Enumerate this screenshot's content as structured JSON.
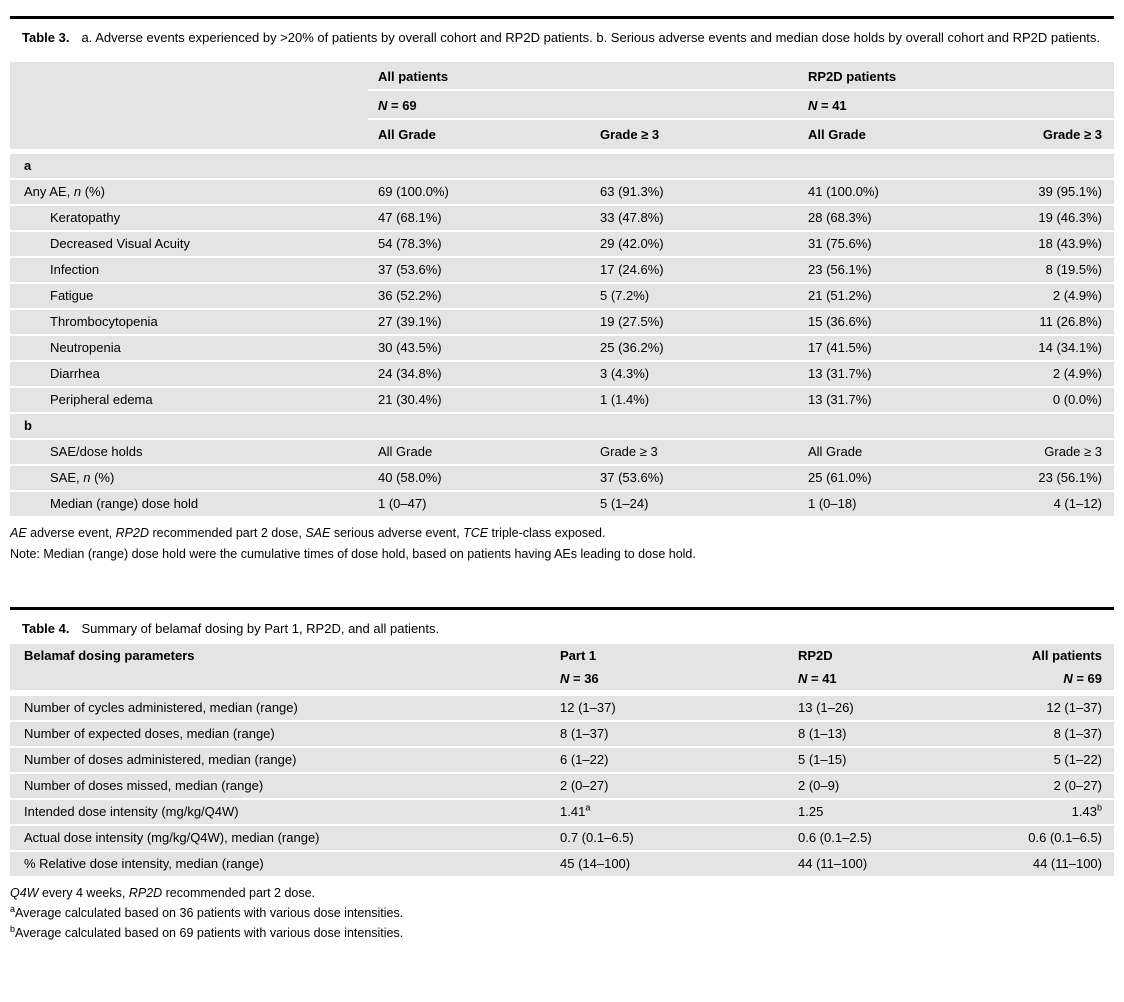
{
  "colors": {
    "row_bg": "#e4e4e4",
    "rule": "#000000",
    "text": "#000000",
    "page_bg": "#ffffff"
  },
  "t3": {
    "caption_label": "Table 3.",
    "caption_body": "a. Adverse events experienced by >20% of patients by overall cohort and RP2D patients. b. Serious adverse events and median dose holds by overall cohort and RP2D patients.",
    "group_titles": [
      "All patients",
      "RP2D patients"
    ],
    "n_row": [
      [
        {
          "t": "N",
          "s": "i"
        },
        {
          "t": " = 69"
        }
      ],
      [
        {
          "t": "N",
          "s": "i"
        },
        {
          "t": " = 41"
        }
      ]
    ],
    "grade_row": [
      "All Grade",
      "Grade ≥ 3",
      "All Grade",
      "Grade ≥ 3"
    ],
    "rows": [
      {
        "label": [
          {
            "t": "a"
          }
        ],
        "section": true,
        "cells": null
      },
      {
        "label": [
          {
            "t": "Any AE, "
          },
          {
            "t": "n",
            "s": "i"
          },
          {
            "t": " (%)"
          }
        ],
        "cells": [
          "69 (100.0%)",
          "63 (91.3%)",
          "41 (100.0%)",
          "39 (95.1%)"
        ]
      },
      {
        "label": [
          {
            "t": "Keratopathy"
          }
        ],
        "cells": [
          "47 (68.1%)",
          "33 (47.8%)",
          "28 (68.3%)",
          "19 (46.3%)"
        ]
      },
      {
        "label": [
          {
            "t": "Decreased Visual Acuity"
          }
        ],
        "cells": [
          "54 (78.3%)",
          "29 (42.0%)",
          "31 (75.6%)",
          "18 (43.9%)"
        ]
      },
      {
        "label": [
          {
            "t": "Infection"
          }
        ],
        "cells": [
          "37 (53.6%)",
          "17 (24.6%)",
          "23 (56.1%)",
          "8 (19.5%)"
        ]
      },
      {
        "label": [
          {
            "t": "Fatigue"
          }
        ],
        "cells": [
          "36 (52.2%)",
          "5 (7.2%)",
          "21 (51.2%)",
          "2 (4.9%)"
        ]
      },
      {
        "label": [
          {
            "t": "Thrombocytopenia"
          }
        ],
        "cells": [
          "27 (39.1%)",
          "19 (27.5%)",
          "15 (36.6%)",
          "11 (26.8%)"
        ]
      },
      {
        "label": [
          {
            "t": "Neutropenia"
          }
        ],
        "cells": [
          "30 (43.5%)",
          "25 (36.2%)",
          "17 (41.5%)",
          "14 (34.1%)"
        ]
      },
      {
        "label": [
          {
            "t": "Diarrhea"
          }
        ],
        "cells": [
          "24 (34.8%)",
          "3 (4.3%)",
          "13 (31.7%)",
          "2 (4.9%)"
        ]
      },
      {
        "label": [
          {
            "t": "Peripheral edema"
          }
        ],
        "cells": [
          "21 (30.4%)",
          "1 (1.4%)",
          "13 (31.7%)",
          "0 (0.0%)"
        ]
      },
      {
        "label": [
          {
            "t": "b"
          }
        ],
        "section": true,
        "cells": null
      },
      {
        "label": [
          {
            "t": "SAE/dose holds"
          }
        ],
        "cells": [
          "All Grade",
          "Grade ≥ 3",
          "All Grade",
          "Grade ≥ 3"
        ]
      },
      {
        "label": [
          {
            "t": "SAE, "
          },
          {
            "t": "n",
            "s": "i"
          },
          {
            "t": " (%)"
          }
        ],
        "cells": [
          "40 (58.0%)",
          "37 (53.6%)",
          "25 (61.0%)",
          "23 (56.1%)"
        ]
      },
      {
        "label": [
          {
            "t": "Median (range) dose hold"
          }
        ],
        "cells": [
          "1 (0–47)",
          "5 (1–24)",
          "1 (0–18)",
          "4 (1–12)"
        ]
      }
    ],
    "footnotes": [
      [
        {
          "t": "AE",
          "s": "i"
        },
        {
          "t": " adverse event, "
        },
        {
          "t": "RP2D",
          "s": "i"
        },
        {
          "t": " recommended part 2 dose, "
        },
        {
          "t": "SAE",
          "s": "i"
        },
        {
          "t": " serious adverse event, "
        },
        {
          "t": "TCE",
          "s": "i"
        },
        {
          "t": " triple-class exposed."
        }
      ],
      [
        {
          "t": "Note: Median (range) dose hold were the cumulative times of dose hold, based on patients having AEs leading to dose hold."
        }
      ]
    ]
  },
  "t4": {
    "caption_label": "Table 4.",
    "caption_body": "Summary of belamaf dosing by Part 1, RP2D, and all patients.",
    "header_label": "Belamaf dosing parameters",
    "col_titles": [
      "Part 1",
      "RP2D",
      "All patients"
    ],
    "n_row": [
      [
        {
          "t": "N",
          "s": "i"
        },
        {
          "t": " = 36"
        }
      ],
      [
        {
          "t": "N",
          "s": "i"
        },
        {
          "t": " = 41"
        }
      ],
      [
        {
          "t": "N",
          "s": "i"
        },
        {
          "t": " = 69"
        }
      ]
    ],
    "rows": [
      {
        "label": [
          {
            "t": "Number of cycles administered, median (range)"
          }
        ],
        "cells": [
          "12 (1–37)",
          "13 (1–26)",
          "12 (1–37)"
        ]
      },
      {
        "label": [
          {
            "t": "Number of expected doses, median (range)"
          }
        ],
        "cells": [
          "8 (1–37)",
          "8 (1–13)",
          "8 (1–37)"
        ]
      },
      {
        "label": [
          {
            "t": "Number of doses administered, median (range)"
          }
        ],
        "cells": [
          "6 (1–22)",
          "5 (1–15)",
          "5 (1–22)"
        ]
      },
      {
        "label": [
          {
            "t": "Number of doses missed, median (range)"
          }
        ],
        "cells": [
          "2 (0–27)",
          "2 (0–9)",
          "2 (0–27)"
        ]
      },
      {
        "label": [
          {
            "t": "Intended dose intensity (mg/kg/Q4W)"
          }
        ],
        "cells_segs": [
          [
            {
              "t": "1.41"
            },
            {
              "t": "a",
              "s": "sup"
            }
          ],
          [
            {
              "t": "1.25"
            }
          ],
          [
            {
              "t": "1.43"
            },
            {
              "t": "b",
              "s": "sup"
            }
          ]
        ]
      },
      {
        "label": [
          {
            "t": "Actual dose intensity (mg/kg/Q4W), median (range)"
          }
        ],
        "cells": [
          "0.7 (0.1–6.5)",
          "0.6 (0.1–2.5)",
          "0.6 (0.1–6.5)"
        ]
      },
      {
        "label": [
          {
            "t": "% Relative dose intensity, median (range)"
          }
        ],
        "cells": [
          "45 (14–100)",
          "44 (11–100)",
          "44 (11–100)"
        ]
      }
    ],
    "footnotes": [
      [
        {
          "t": "Q4W",
          "s": "i"
        },
        {
          "t": " every 4 weeks, "
        },
        {
          "t": "RP2D",
          "s": "i"
        },
        {
          "t": " recommended part 2 dose."
        }
      ],
      [
        {
          "t": "a",
          "s": "sup"
        },
        {
          "t": "Average calculated based on 36 patients with various dose intensities."
        }
      ],
      [
        {
          "t": "b",
          "s": "sup"
        },
        {
          "t": "Average calculated based on 69 patients with various dose intensities."
        }
      ]
    ]
  }
}
